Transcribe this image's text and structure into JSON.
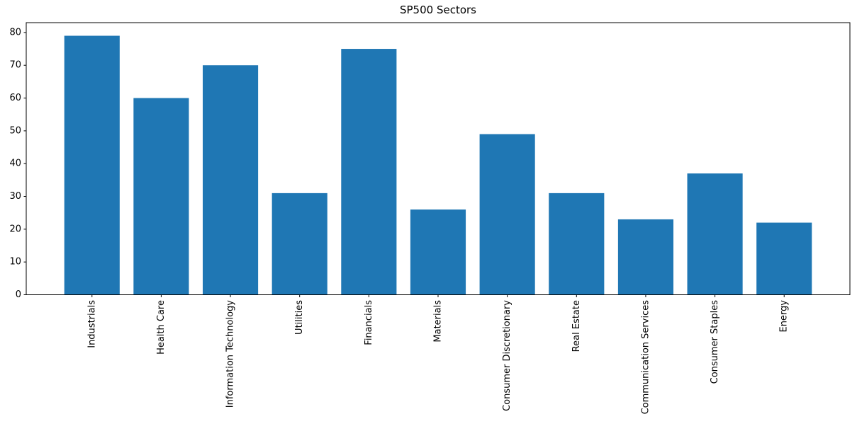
{
  "chart_data": {
    "type": "bar",
    "title": "SP500 Sectors",
    "xlabel": "",
    "ylabel": "",
    "categories": [
      "Industrials",
      "Health Care",
      "Information Technology",
      "Utilities",
      "Financials",
      "Materials",
      "Consumer Discretionary",
      "Real Estate",
      "Communication Services",
      "Consumer Staples",
      "Energy"
    ],
    "values": [
      79,
      60,
      70,
      31,
      75,
      26,
      49,
      31,
      23,
      37,
      22
    ],
    "ylim": [
      0,
      83
    ],
    "yticks": [
      0,
      10,
      20,
      30,
      40,
      50,
      60,
      70,
      80
    ],
    "x_tick_rotation": 90,
    "grid": false,
    "legend_position": "none",
    "bar_color": "#1f77b4",
    "axis_color": "#000000",
    "text_color": "#000000",
    "background_color": "#ffffff"
  }
}
